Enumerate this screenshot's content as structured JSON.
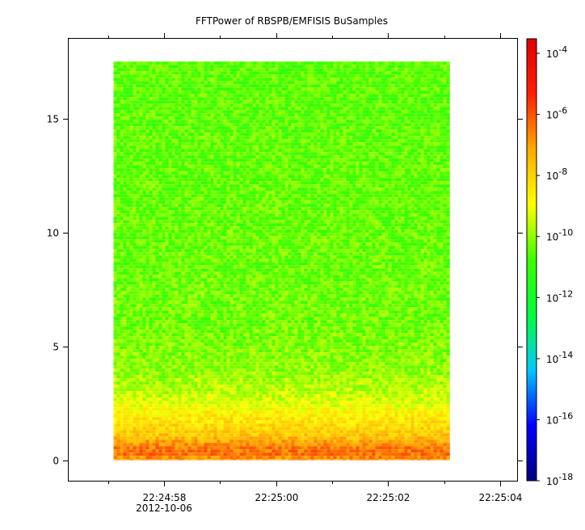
{
  "chart_data": {
    "type": "heatmap",
    "title": "FFTPower of RBSPB/EMFISIS  BuSamples",
    "xlabel": "",
    "ylabel": "",
    "x_axis": {
      "type": "time",
      "range": [
        "22:24:56.3",
        "22:25:04.3"
      ],
      "ticks": [
        {
          "time": "22:24:57",
          "label": "",
          "major": false
        },
        {
          "time": "22:24:58",
          "label": "22:24:58",
          "major": true
        },
        {
          "time": "22:24:59",
          "label": "",
          "major": false
        },
        {
          "time": "22:25:00",
          "label": "22:25:00",
          "major": true
        },
        {
          "time": "22:25:01",
          "label": "",
          "major": false
        },
        {
          "time": "22:25:02",
          "label": "22:25:02",
          "major": true
        },
        {
          "time": "22:25:03",
          "label": "",
          "major": false
        },
        {
          "time": "22:25:04",
          "label": "22:25:04",
          "major": true
        }
      ],
      "date_label": "2012-10-06"
    },
    "y_axis": {
      "range": [
        -0.9,
        18.5
      ],
      "ticks": [
        0,
        5,
        10,
        15
      ]
    },
    "data_extent": {
      "time_start": "22:24:57.1",
      "time_end": "22:25:03.1",
      "y_min": 0,
      "y_max": 17.5
    },
    "colorbar": {
      "scale": "log",
      "range": [
        1e-18,
        0.0003
      ],
      "tick_labels": [
        {
          "base": "10",
          "exp": "-18",
          "value": -18
        },
        {
          "base": "10",
          "exp": "-16",
          "value": -16
        },
        {
          "base": "10",
          "exp": "-14",
          "value": -14
        },
        {
          "base": "10",
          "exp": "-12",
          "value": -12
        },
        {
          "base": "10",
          "exp": "-10",
          "value": -10
        },
        {
          "base": "10",
          "exp": "-8",
          "value": -8
        },
        {
          "base": "10",
          "exp": "-6",
          "value": -6
        },
        {
          "base": "10",
          "exp": "-4",
          "value": -4
        }
      ],
      "colormap": [
        "#00007f",
        "#0000ff",
        "#00c8ff",
        "#00ff3c",
        "#3cff00",
        "#ffff00",
        "#ffaa00",
        "#ff2000",
        "#e00000"
      ]
    },
    "approx_log_power_profile": [
      {
        "y": 0.0,
        "log10_power": -7.0
      },
      {
        "y": 0.3,
        "log10_power": -6.3
      },
      {
        "y": 0.6,
        "log10_power": -6.6
      },
      {
        "y": 1.0,
        "log10_power": -7.6
      },
      {
        "y": 1.5,
        "log10_power": -8.2
      },
      {
        "y": 2.0,
        "log10_power": -8.6
      },
      {
        "y": 2.5,
        "log10_power": -9.2
      },
      {
        "y": 3.0,
        "log10_power": -9.6
      },
      {
        "y": 4.0,
        "log10_power": -10.0
      },
      {
        "y": 6.0,
        "log10_power": -10.3
      },
      {
        "y": 10.0,
        "log10_power": -10.4
      },
      {
        "y": 15.0,
        "log10_power": -10.5
      },
      {
        "y": 17.5,
        "log10_power": -10.5
      }
    ],
    "colors": {
      "axis": "#000000",
      "background": "#ffffff"
    }
  }
}
